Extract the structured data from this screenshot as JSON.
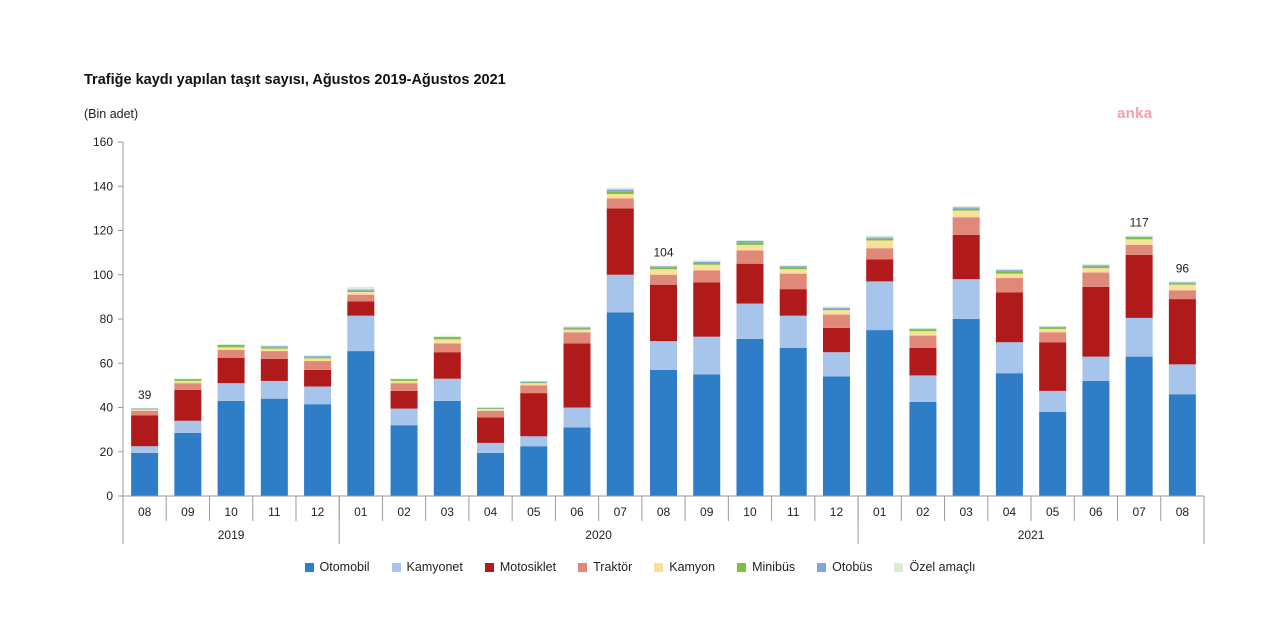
{
  "chart_data": {
    "type": "bar",
    "stacked": true,
    "title": "Trafiğe kaydı yapılan taşıt sayısı, Ağustos 2019-Ağustos 2021",
    "unit_label": "(Bin adet)",
    "watermark": "anka",
    "ylim": [
      0,
      160
    ],
    "yticks": [
      0,
      20,
      40,
      60,
      80,
      100,
      120,
      140,
      160
    ],
    "categories": [
      "08",
      "09",
      "10",
      "11",
      "12",
      "01",
      "02",
      "03",
      "04",
      "05",
      "06",
      "07",
      "08",
      "09",
      "10",
      "11",
      "12",
      "01",
      "02",
      "03",
      "04",
      "05",
      "06",
      "07",
      "08"
    ],
    "groups": [
      {
        "label": "2019",
        "start": 0,
        "end": 4
      },
      {
        "label": "2020",
        "start": 5,
        "end": 16
      },
      {
        "label": "2021",
        "start": 17,
        "end": 24
      }
    ],
    "series": [
      {
        "name": "Otomobil",
        "color": "#2f7dc6",
        "values": [
          19.5,
          28.5,
          43,
          44,
          41.5,
          65.5,
          32,
          43,
          19.5,
          22.5,
          31,
          83,
          57,
          55,
          71,
          67,
          54,
          75,
          42.5,
          80,
          55.5,
          38,
          52,
          63,
          46
        ]
      },
      {
        "name": "Kamyonet",
        "color": "#a7c4eb",
        "values": [
          3,
          5.5,
          8,
          8,
          8,
          16,
          7.5,
          10,
          4.5,
          4.5,
          9,
          17,
          13,
          17,
          16,
          14.5,
          11,
          22,
          12,
          18,
          14,
          9.5,
          11,
          17.5,
          13.5
        ]
      },
      {
        "name": "Motosiklet",
        "color": "#b01a1a",
        "values": [
          14,
          14,
          11.5,
          10,
          7.5,
          6.5,
          8,
          12,
          11.5,
          19.5,
          29,
          30,
          25.5,
          24.5,
          18,
          12,
          11,
          10,
          12.5,
          20,
          22.5,
          22,
          31.5,
          28.5,
          29.5
        ]
      },
      {
        "name": "Traktör",
        "color": "#e0887a",
        "values": [
          2,
          3,
          3.5,
          3.5,
          4,
          3,
          3.5,
          4,
          3,
          3.5,
          5,
          4.5,
          4.5,
          5.5,
          6,
          7,
          6,
          5,
          5.5,
          8,
          6.5,
          4.5,
          6.5,
          4.5,
          4
        ]
      },
      {
        "name": "Kamyon",
        "color": "#fbe09a",
        "values": [
          0.6,
          1,
          1.2,
          1.1,
          1.2,
          1.2,
          1,
          1.8,
          0.8,
          1,
          1.2,
          2,
          2.5,
          2.5,
          2.5,
          2,
          2,
          3.5,
          2,
          3,
          2,
          1.5,
          2,
          2.5,
          2.5
        ]
      },
      {
        "name": "Minibüs",
        "color": "#7ac142",
        "values": [
          0.2,
          0.5,
          0.6,
          0.6,
          0.5,
          0.6,
          0.5,
          0.6,
          0.3,
          0.3,
          0.5,
          1.2,
          0.8,
          0.8,
          1,
          0.8,
          0.6,
          0.8,
          0.6,
          0.8,
          1,
          0.5,
          0.7,
          0.6,
          0.5
        ]
      },
      {
        "name": "Otobüs",
        "color": "#7fa6d4",
        "values": [
          0.3,
          0.4,
          0.5,
          0.5,
          0.5,
          0.5,
          0.4,
          0.5,
          0.3,
          0.4,
          0.5,
          0.8,
          0.5,
          0.6,
          0.8,
          0.6,
          0.5,
          0.6,
          0.5,
          0.6,
          0.6,
          0.5,
          0.6,
          0.6,
          0.5
        ]
      },
      {
        "name": "Özel amaçlı",
        "color": "#dcebd6",
        "values": [
          0.2,
          0.3,
          0.4,
          0.4,
          0.4,
          1.2,
          0.3,
          0.5,
          0.3,
          0.4,
          0.5,
          0.8,
          0.4,
          0.6,
          0.4,
          0.4,
          0.5,
          0.8,
          0.4,
          0.6,
          0.6,
          0.5,
          0.5,
          0.5,
          0.5
        ]
      }
    ],
    "data_labels": [
      {
        "index": 0,
        "text": "39"
      },
      {
        "index": 12,
        "text": "104"
      },
      {
        "index": 23,
        "text": "117"
      },
      {
        "index": 24,
        "text": "96"
      }
    ],
    "grid": false,
    "legend_position": "bottom"
  }
}
